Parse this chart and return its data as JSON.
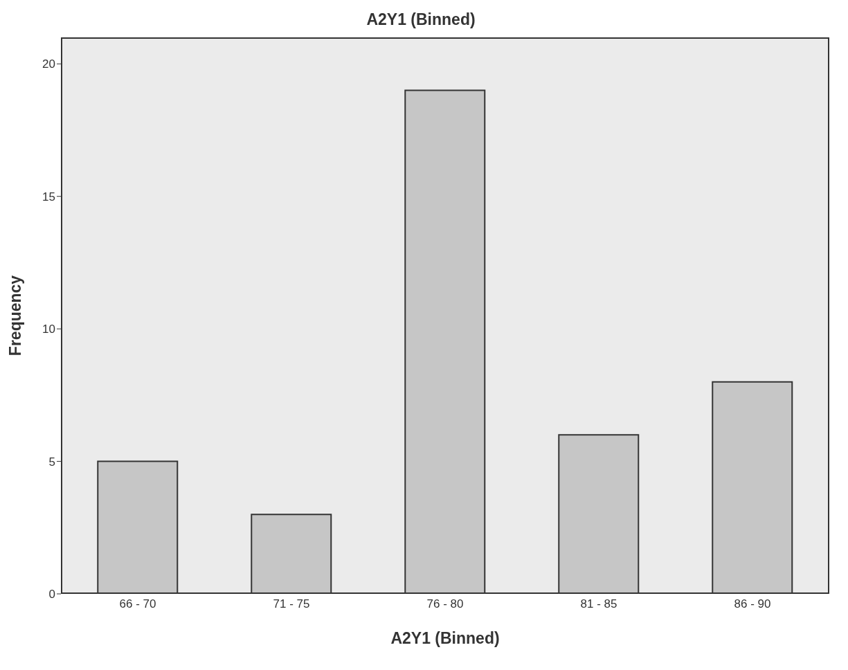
{
  "chart_data": {
    "type": "bar",
    "title": "A2Y1 (Binned)",
    "xlabel": "A2Y1 (Binned)",
    "ylabel": "Frequency",
    "categories": [
      "66 - 70",
      "71 - 75",
      "76 - 80",
      "81 - 85",
      "86 - 90"
    ],
    "values": [
      5,
      3,
      19,
      6,
      8
    ],
    "color": "#c6c6c6",
    "ylim": [
      0,
      21
    ],
    "yticks": [
      0,
      5,
      10,
      15,
      20
    ]
  }
}
